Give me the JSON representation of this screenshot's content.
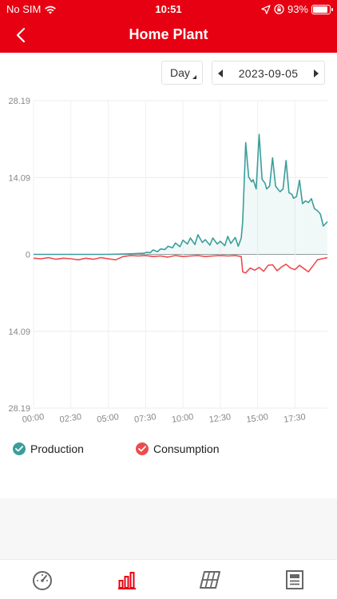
{
  "status_bar": {
    "carrier": "No SIM",
    "time": "10:51",
    "battery": "93%",
    "battery_level": 0.93
  },
  "header": {
    "title": "Home Plant"
  },
  "controls": {
    "period": "Day",
    "date": "2023-09-05"
  },
  "colors": {
    "brand": "#e60012",
    "production": "#3a9e9b",
    "consumption": "#ec4b4f"
  },
  "chart_data": {
    "type": "line",
    "title": "",
    "ytick_labels": [
      "28.19",
      "14.09",
      "0",
      "14.09",
      "28.19"
    ],
    "ylim": [
      -28.19,
      28.19
    ],
    "x_tick_labels": [
      "00:00",
      "02:30",
      "05:00",
      "07:30",
      "10:00",
      "12:30",
      "15:00",
      "17:30"
    ],
    "x_range_hours": [
      0,
      19.67
    ],
    "grid": true,
    "legend_placement": "bottom",
    "series": [
      {
        "name": "Production",
        "color": "#3a9e9b",
        "x": [
          0,
          2.5,
          5,
          6.5,
          7.4,
          7.6,
          7.8,
          8.0,
          8.3,
          8.5,
          8.8,
          9.0,
          9.3,
          9.5,
          9.8,
          10.0,
          10.3,
          10.5,
          10.8,
          11.0,
          11.3,
          11.5,
          11.8,
          12.0,
          12.3,
          12.5,
          12.8,
          13.0,
          13.2,
          13.5,
          13.7,
          13.9,
          14.0,
          14.2,
          14.4,
          14.6,
          14.7,
          14.9,
          15.1,
          15.3,
          15.5,
          15.6,
          15.8,
          16.0,
          16.2,
          16.4,
          16.5,
          16.7,
          16.9,
          17.1,
          17.3,
          17.4,
          17.6,
          17.8,
          18.0,
          18.2,
          18.4,
          18.6,
          18.8,
          19.0,
          19.2,
          19.4,
          19.67
        ],
        "y": [
          0,
          0,
          0,
          0.1,
          0.2,
          0.4,
          0.3,
          0.8,
          0.5,
          1.0,
          0.9,
          1.5,
          1.2,
          2.1,
          1.4,
          2.6,
          1.9,
          3.0,
          1.8,
          3.6,
          2.2,
          2.7,
          1.7,
          3.0,
          1.9,
          2.4,
          1.6,
          3.3,
          2.0,
          3.1,
          1.5,
          3.0,
          6.0,
          20.5,
          14.2,
          13.3,
          13.7,
          12.0,
          22.0,
          13.8,
          13.0,
          12.0,
          12.5,
          17.7,
          12.5,
          11.8,
          11.5,
          12.0,
          17.2,
          11.3,
          11.0,
          10.3,
          10.6,
          13.6,
          9.3,
          9.8,
          9.5,
          10.2,
          8.4,
          8.0,
          7.4,
          5.2,
          6.0
        ]
      },
      {
        "name": "Consumption",
        "color": "#ec4b4f",
        "x": [
          0,
          0.5,
          1.0,
          1.5,
          2.0,
          2.5,
          3.0,
          3.5,
          4.0,
          4.5,
          5.0,
          5.5,
          6.0,
          6.5,
          7.0,
          7.5,
          8.0,
          8.5,
          9.0,
          9.5,
          10.0,
          10.5,
          11.0,
          11.5,
          12.0,
          12.5,
          13.0,
          13.5,
          13.9,
          14.0,
          14.2,
          14.5,
          14.8,
          15.1,
          15.4,
          15.7,
          16.0,
          16.3,
          16.6,
          16.9,
          17.2,
          17.5,
          17.8,
          18.1,
          18.4,
          18.7,
          19.0,
          19.3,
          19.67
        ],
        "y": [
          -0.7,
          -0.8,
          -0.6,
          -0.9,
          -0.7,
          -0.8,
          -1.0,
          -0.7,
          -0.9,
          -0.6,
          -0.8,
          -1.0,
          -0.4,
          -0.2,
          -0.3,
          -0.2,
          -0.4,
          -0.3,
          -0.5,
          -0.2,
          -0.4,
          -0.3,
          -0.2,
          -0.4,
          -0.3,
          -0.2,
          -0.3,
          -0.2,
          -0.4,
          -3.2,
          -3.4,
          -2.5,
          -2.9,
          -2.4,
          -3.1,
          -2.0,
          -1.9,
          -3.0,
          -2.3,
          -1.8,
          -2.5,
          -2.8,
          -2.0,
          -2.6,
          -3.2,
          -2.1,
          -1.0,
          -0.8,
          -0.6
        ]
      }
    ]
  },
  "legend": {
    "production": "Production",
    "consumption": "Consumption"
  },
  "tabs": [
    {
      "icon": "dashboard-gauge-icon"
    },
    {
      "icon": "bar-chart-icon",
      "active": true
    },
    {
      "icon": "solar-panel-icon"
    },
    {
      "icon": "report-document-icon"
    }
  ]
}
